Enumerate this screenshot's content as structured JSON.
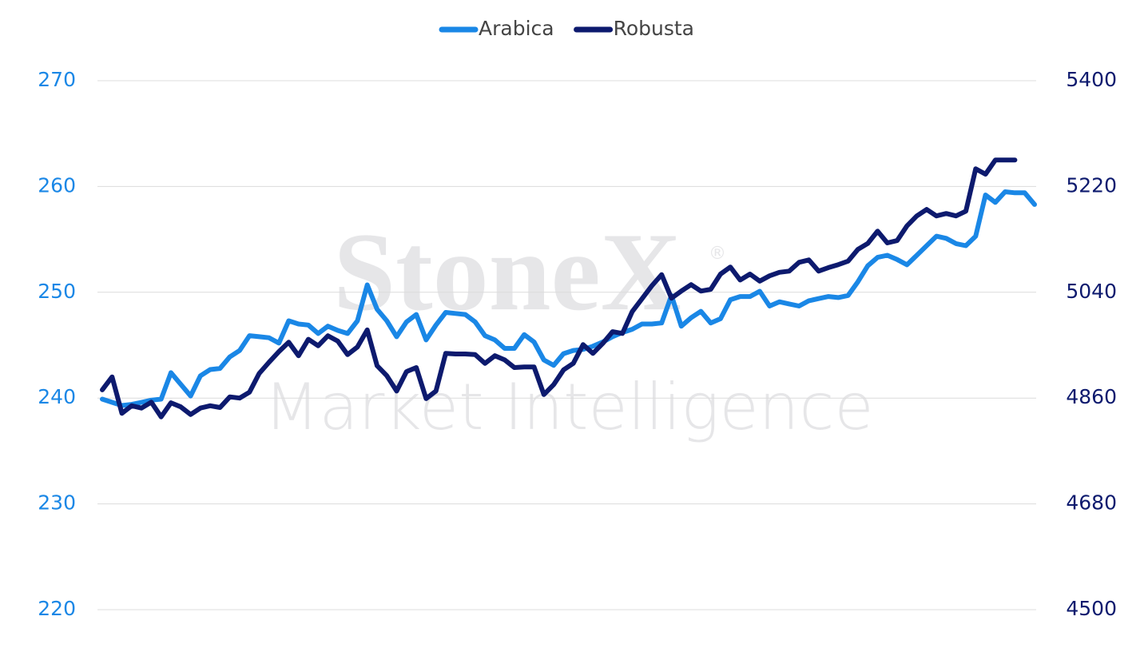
{
  "chart_data": {
    "type": "line",
    "watermark": {
      "title": "StoneX",
      "mark": "®",
      "subtitle": "Market Intelligence"
    },
    "categories": [
      null,
      null,
      null,
      null,
      null,
      null,
      null,
      null,
      null,
      null,
      null,
      null,
      null,
      null,
      null,
      null,
      null,
      null,
      null,
      null,
      null,
      null,
      null,
      null,
      null,
      null,
      null,
      null,
      null,
      null,
      null,
      null,
      null,
      null,
      null,
      null,
      null,
      null,
      null,
      null,
      null,
      null,
      null,
      null,
      null,
      null,
      null,
      null,
      null,
      null,
      null,
      null,
      null,
      null,
      null,
      null,
      null,
      null,
      null,
      null,
      null,
      null,
      null,
      null,
      null,
      null,
      null,
      null,
      null,
      null,
      null,
      null,
      null,
      null,
      null,
      null,
      null,
      null,
      null,
      null,
      null,
      null,
      null,
      null,
      null,
      null,
      null,
      null,
      null,
      null,
      null,
      null,
      null,
      null,
      null,
      null
    ],
    "series": [
      {
        "name": "Arabica",
        "color": "#1a87e6",
        "axis": "y",
        "values": [
          239.9,
          239.6,
          239.3,
          239.4,
          239.6,
          239.8,
          239.9,
          242.4,
          241.3,
          240.2,
          242.1,
          242.7,
          242.8,
          243.9,
          244.5,
          245.9,
          245.8,
          245.7,
          245.2,
          247.3,
          247.0,
          246.9,
          246.1,
          246.8,
          246.4,
          246.1,
          247.3,
          250.7,
          248.4,
          247.3,
          245.8,
          247.2,
          247.9,
          245.5,
          246.9,
          248.1,
          248.0,
          247.9,
          247.2,
          245.9,
          245.5,
          244.7,
          244.7,
          246.0,
          245.3,
          243.6,
          243.1,
          244.2,
          244.5,
          244.6,
          244.9,
          245.3,
          245.8,
          246.2,
          246.5,
          247.0,
          247.0,
          247.1,
          249.7,
          246.8,
          247.6,
          248.2,
          247.1,
          247.5,
          249.3,
          249.6,
          249.6,
          250.1,
          248.7,
          249.1,
          248.9,
          248.7,
          249.2,
          249.4,
          249.6,
          249.5,
          249.7,
          251.0,
          252.5,
          253.3,
          253.5,
          253.1,
          252.6,
          253.5,
          254.4,
          255.3,
          255.1,
          254.6,
          254.4,
          255.3,
          259.2,
          258.5,
          259.5,
          259.4,
          259.4,
          258.3
        ]
      },
      {
        "name": "Robusta",
        "color": "#0d1a6e",
        "axis": "y2",
        "values": [
          4874,
          4896,
          4834,
          4847,
          4843,
          4853,
          4828,
          4852,
          4845,
          4832,
          4843,
          4847,
          4844,
          4862,
          4860,
          4870,
          4902,
          4921,
          4939,
          4955,
          4932,
          4960,
          4949,
          4966,
          4957,
          4934,
          4947,
          4976,
          4915,
          4898,
          4872,
          4905,
          4912,
          4859,
          4872,
          4936,
          4935,
          4935,
          4934,
          4919,
          4932,
          4925,
          4912,
          4913,
          4913,
          4866,
          4883,
          4908,
          4919,
          4951,
          4936,
          4953,
          4973,
          4970,
          5007,
          5029,
          5051,
          5070,
          5030,
          5042,
          5053,
          5042,
          5045,
          5071,
          5083,
          5061,
          5071,
          5059,
          5068,
          5074,
          5076,
          5091,
          5095,
          5076,
          5082,
          5087,
          5093,
          5113,
          5123,
          5144,
          5124,
          5128,
          5153,
          5170,
          5181,
          5170,
          5174,
          5170,
          5178,
          5250,
          5241,
          5265,
          5265,
          5265,
          null,
          null
        ]
      }
    ],
    "ylim": [
      220,
      270
    ],
    "yticks": [
      220,
      230,
      240,
      250,
      260,
      270
    ],
    "y2lim": [
      4500,
      5400
    ],
    "y2ticks": [
      4500,
      4680,
      4860,
      5040,
      5220,
      5400
    ],
    "grid": true,
    "legend": "top"
  }
}
